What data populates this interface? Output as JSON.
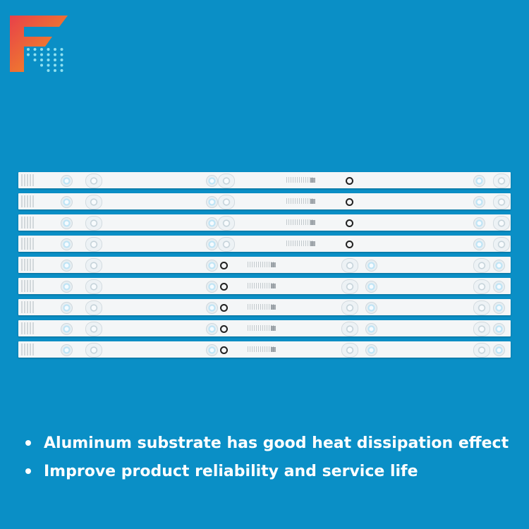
{
  "brand": {
    "logo_letter": "F",
    "logo_gradient": [
      "#e8404a",
      "#f39a1f"
    ],
    "logo_dots_color": "#8fe0f0"
  },
  "background_color": "#0a8fc6",
  "product": {
    "strip_count": 9,
    "strip_color": "#f4f6f7"
  },
  "features": [
    "Aluminum substrate has good heat dissipation effect",
    "Improve product reliability and service life"
  ]
}
